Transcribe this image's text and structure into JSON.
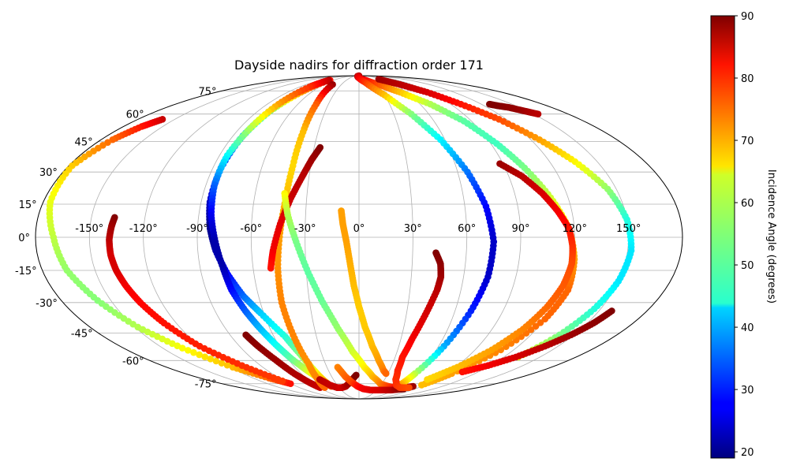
{
  "chart_data": {
    "type": "scatter",
    "projection": "mollweide",
    "title": "Dayside nadirs for diffraction order 171",
    "x_tick_labels": [
      "-150°",
      "-120°",
      "-90°",
      "-60°",
      "-30°",
      "0°",
      "30°",
      "60°",
      "90°",
      "120°",
      "150°"
    ],
    "y_tick_labels": [
      "75°",
      "60°",
      "45°",
      "30°",
      "15°",
      "0°",
      "-15°",
      "-30°",
      "-45°",
      "-60°",
      "-75°"
    ],
    "colorbar": {
      "label": "Incidence Angle (degrees)",
      "range": [
        19,
        90
      ],
      "ticks": [
        "20",
        "30",
        "40",
        "50",
        "60",
        "70",
        "80",
        "90"
      ],
      "colormap": "jet"
    },
    "grid": true,
    "tracks": [
      {
        "lon": [
          -160,
          -166,
          -172,
          -178,
          -176,
          -170,
          -166,
          -158,
          -148,
          -135,
          -118,
          -102,
          -90
        ],
        "lat": [
          57,
          53,
          46,
          33,
          16,
          0,
          -15,
          -29,
          -42,
          -53,
          -64,
          -71,
          -75
        ],
        "inc": [
          85,
          80,
          74,
          67,
          62,
          59,
          56,
          55,
          58,
          63,
          68,
          74,
          80
        ]
      },
      {
        "lon": [
          -137,
          -138,
          -139,
          -139,
          -138,
          -136,
          -133,
          -128,
          -120,
          -107,
          -93
        ],
        "lat": [
          9,
          5,
          -1,
          -8,
          -15,
          -22,
          -30,
          -40,
          -52,
          -63,
          -73
        ],
        "inc": [
          90,
          88,
          86,
          84,
          84,
          82,
          81,
          80,
          79,
          78,
          77
        ]
      },
      {
        "lon": [
          -69,
          -73,
          -79,
          -83,
          -85,
          -85,
          -83,
          -80,
          -75,
          -69,
          -62,
          -52,
          -47,
          -44,
          -42,
          -40
        ],
        "lat": [
          84,
          74,
          62,
          48,
          32,
          16,
          4,
          -6,
          -17,
          -27,
          -35,
          -47,
          -57,
          -66,
          -73,
          -77
        ],
        "inc": [
          80,
          70,
          55,
          40,
          30,
          24,
          20,
          22,
          28,
          35,
          42,
          48,
          55,
          62,
          68,
          75
        ]
      },
      {
        "lon": [
          -72,
          -75,
          -79,
          -82,
          -85,
          -85,
          -83,
          -80,
          -77,
          -75,
          -71,
          -67,
          -62,
          -57,
          -51,
          -45,
          -40
        ],
        "lat": [
          84,
          78,
          66,
          52,
          38,
          24,
          10,
          -2,
          -14,
          -24,
          -34,
          -42,
          -51,
          -59,
          -66,
          -72,
          -77
        ],
        "inc": [
          86,
          78,
          70,
          58,
          46,
          35,
          27,
          22,
          22,
          28,
          34,
          40,
          46,
          52,
          60,
          68,
          75
        ]
      },
      {
        "lon": [
          -79,
          -76,
          -71,
          -67,
          -63,
          -59
        ],
        "lat": [
          -46,
          -52,
          -60,
          -68,
          -74,
          -78
        ],
        "inc": [
          90,
          89,
          88,
          87,
          86,
          85
        ]
      },
      {
        "lon": [
          -45,
          -42,
          -41,
          -41,
          -42,
          -44,
          -46,
          -47,
          -46,
          -45,
          -48,
          -52
        ],
        "lat": [
          80,
          66,
          50,
          33,
          17,
          2,
          -14,
          -30,
          -46,
          -62,
          -72,
          -78
        ],
        "inc": [
          88,
          75,
          68,
          66,
          68,
          70,
          71,
          72,
          72,
          71,
          72,
          74
        ]
      },
      {
        "lon": [
          -26,
          -30,
          -34,
          -39,
          -44,
          -48,
          -50
        ],
        "lat": [
          42,
          36,
          28,
          18,
          6,
          -6,
          -14
        ],
        "inc": [
          90,
          88,
          86,
          85,
          83,
          82,
          80
        ]
      },
      {
        "lon": [
          -43,
          -40,
          -35,
          -29,
          -22,
          -14,
          -5,
          5,
          15,
          28,
          42,
          55,
          68,
          78
        ],
        "lat": [
          20,
          10,
          -2,
          -16,
          -30,
          -43,
          -55,
          -64,
          -70,
          -75,
          -77,
          -78,
          -78,
          -77
        ],
        "inc": [
          64,
          58,
          54,
          52,
          53,
          56,
          60,
          64,
          68,
          72,
          76,
          80,
          84,
          88
        ]
      },
      {
        "lon": [
          -46,
          -40,
          -33,
          -26,
          -19,
          -11,
          -3
        ],
        "lat": [
          -72,
          -76,
          -78,
          -78,
          -77,
          -74,
          -69
        ],
        "inc": [
          86,
          85,
          85,
          84,
          86,
          88,
          90
        ]
      },
      {
        "lon": [
          -10,
          -9,
          -7,
          -5,
          -3,
          0,
          4,
          10,
          17,
          24,
          28
        ],
        "lat": [
          12,
          6,
          -2,
          -12,
          -22,
          -32,
          -42,
          -52,
          -60,
          -66,
          -68
        ],
        "inc": [
          70,
          70,
          70,
          69,
          68,
          67,
          67,
          68,
          70,
          72,
          74
        ]
      },
      {
        "lon": [
          -20,
          -15,
          -9,
          -2,
          7,
          20,
          37,
          55,
          72
        ],
        "lat": [
          -64,
          -70,
          -74,
          -77,
          -79,
          -80,
          -80,
          -80,
          -79
        ],
        "inc": [
          72,
          74,
          76,
          80,
          82,
          83,
          84,
          86,
          90
        ]
      },
      {
        "lon": [
          -10,
          -2,
          15,
          34,
          52,
          70,
          84,
          94,
          102,
          110,
          117,
          121,
          123,
          120,
          110,
          96,
          86
        ],
        "lat": [
          89,
          87,
          84,
          80,
          74,
          66,
          56,
          44,
          32,
          18,
          4,
          -10,
          -24,
          -38,
          -54,
          -68,
          -76
        ],
        "inc": [
          88,
          86,
          82,
          76,
          68,
          58,
          52,
          50,
          54,
          60,
          66,
          70,
          74,
          74,
          72,
          70,
          68
        ]
      },
      {
        "lon": [
          -10,
          12,
          30,
          45,
          57,
          66,
          72,
          75,
          74,
          70,
          64,
          58,
          56
        ],
        "lat": [
          90,
          82,
          72,
          60,
          46,
          30,
          14,
          -2,
          -18,
          -34,
          -52,
          -68,
          -76
        ],
        "inc": [
          86,
          78,
          68,
          55,
          45,
          36,
          28,
          24,
          24,
          30,
          40,
          58,
          70
        ]
      },
      {
        "lon": [
          43,
          46,
          47,
          46,
          42,
          38,
          36,
          38,
          43,
          51,
          62,
          76
        ],
        "lat": [
          -7,
          -12,
          -18,
          -24,
          -36,
          -48,
          -58,
          -66,
          -72,
          -76,
          -78,
          -78
        ],
        "inc": [
          90,
          89,
          88,
          86,
          84,
          82,
          80,
          79,
          78,
          78,
          77,
          76
        ]
      },
      {
        "lon": [
          53,
          70,
          86,
          100,
          114,
          126,
          136,
          145,
          150,
          152,
          150,
          146,
          140,
          132
        ],
        "lat": [
          85,
          80,
          74,
          66,
          57,
          46,
          35,
          22,
          8,
          -6,
          -20,
          -33,
          -46,
          -58
        ],
        "inc": [
          88,
          86,
          84,
          80,
          76,
          70,
          64,
          56,
          48,
          44,
          44,
          48,
          54,
          62
        ]
      },
      {
        "lon": [
          88,
          98,
          106,
          112,
          117,
          119,
          120,
          119,
          116,
          111,
          103,
          92,
          80
        ],
        "lat": [
          34,
          28,
          20,
          12,
          4,
          -4,
          -12,
          -22,
          -32,
          -43,
          -54,
          -64,
          -72
        ],
        "inc": [
          88,
          86,
          84,
          82,
          80,
          78,
          76,
          75,
          74,
          72,
          70,
          68,
          66
        ]
      },
      {
        "lon": [
          158,
          154,
          148,
          140,
          130,
          118,
          104
        ],
        "lat": [
          -34,
          -40,
          -46,
          -52,
          -58,
          -63,
          -67
        ],
        "inc": [
          90,
          89,
          88,
          86,
          84,
          82,
          80
        ]
      },
      {
        "lon": [
          128,
          133,
          140,
          147,
          154
        ],
        "lat": [
          66,
          65,
          64,
          62,
          60
        ],
        "inc": [
          90,
          90,
          89,
          88,
          86
        ]
      }
    ]
  }
}
